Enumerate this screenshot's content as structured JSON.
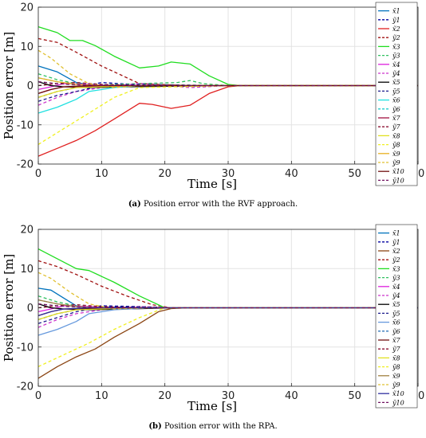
{
  "chart_data": [
    {
      "type": "line",
      "caption_tag": "(a)",
      "caption_text": " Position error with the RVF approach.",
      "xlabel": "Time [s]",
      "ylabel": "Position error [m]",
      "xlim": [
        0,
        60
      ],
      "ylim": [
        -20,
        20
      ],
      "xticks": [
        0,
        10,
        20,
        30,
        40,
        50,
        60
      ],
      "yticks": [
        -20,
        -10,
        0,
        10,
        20
      ],
      "grid": true,
      "legend": "right",
      "series": [
        {
          "name": "x̃1",
          "color": "#0072BD",
          "dash": false,
          "x": [
            0,
            3,
            6,
            10,
            16,
            30,
            60
          ],
          "y": [
            5,
            3.5,
            0.8,
            -0.3,
            0,
            0,
            0
          ]
        },
        {
          "name": "ỹ1",
          "color": "#0000A0",
          "dash": true,
          "x": [
            0,
            3,
            6,
            10,
            16,
            30,
            60
          ],
          "y": [
            -3,
            -1.5,
            -0.5,
            0.8,
            0.2,
            0,
            0
          ]
        },
        {
          "name": "x̃2",
          "color": "#E02020",
          "dash": false,
          "x": [
            0,
            3,
            6,
            9,
            12,
            16,
            18,
            21,
            24,
            27,
            30,
            32,
            60
          ],
          "y": [
            -18,
            -16,
            -14,
            -11.5,
            -8.5,
            -4.5,
            -4.8,
            -5.8,
            -5,
            -2,
            -0.3,
            0,
            0
          ]
        },
        {
          "name": "ỹ2",
          "color": "#A01010",
          "dash": true,
          "x": [
            0,
            3,
            6,
            10,
            16,
            24,
            30,
            60
          ],
          "y": [
            12,
            11,
            8.5,
            5,
            0.5,
            0,
            0,
            0
          ]
        },
        {
          "name": "x̃3",
          "color": "#20DD20",
          "dash": false,
          "x": [
            0,
            3,
            5,
            7,
            9,
            12,
            16,
            19,
            21,
            24,
            27,
            30,
            32,
            60
          ],
          "y": [
            15,
            13.5,
            11.5,
            11.5,
            10.2,
            7.5,
            4.5,
            5,
            6,
            5.5,
            2.5,
            0.3,
            0,
            0
          ]
        },
        {
          "name": "ỹ3",
          "color": "#30C060",
          "dash": true,
          "x": [
            0,
            3,
            6,
            10,
            16,
            22,
            24,
            26,
            30,
            60
          ],
          "y": [
            3,
            1.5,
            0.5,
            0.2,
            0.5,
            0.8,
            1.3,
            0.5,
            0,
            0
          ]
        },
        {
          "name": "x̃4",
          "color": "#DD20DD",
          "dash": false,
          "x": [
            0,
            2,
            4,
            8,
            14,
            30,
            60
          ],
          "y": [
            -1,
            -0.3,
            0.5,
            0.3,
            -0.2,
            0,
            0
          ]
        },
        {
          "name": "ỹ4",
          "color": "#CC33CC",
          "dash": true,
          "x": [
            0,
            3,
            6,
            12,
            16,
            24,
            30,
            60
          ],
          "y": [
            -5,
            -3,
            -1.5,
            0,
            0.5,
            -0.5,
            0,
            0
          ]
        },
        {
          "name": "x̃5",
          "color": "#000000",
          "dash": false,
          "x": [
            0,
            2,
            4,
            8,
            14,
            30,
            60
          ],
          "y": [
            1,
            0,
            -0.3,
            -0.5,
            -0.3,
            0,
            0
          ]
        },
        {
          "name": "ỹ5",
          "color": "#1A1A8C",
          "dash": true,
          "x": [
            0,
            3,
            6,
            10,
            16,
            30,
            60
          ],
          "y": [
            -4,
            -2.5,
            -1.5,
            0,
            0.3,
            0,
            0
          ]
        },
        {
          "name": "x̃6",
          "color": "#20E0E0",
          "dash": false,
          "x": [
            0,
            3,
            6,
            8,
            12,
            16,
            30,
            60
          ],
          "y": [
            -7,
            -5.5,
            -3.5,
            -1.5,
            -0.5,
            0,
            0,
            0
          ]
        },
        {
          "name": "ỹ6",
          "color": "#20CCCC",
          "dash": true,
          "x": [
            0,
            3,
            6,
            12,
            16,
            30,
            60
          ],
          "y": [
            2,
            1,
            0.3,
            -0.3,
            0,
            0,
            0
          ]
        },
        {
          "name": "x̃7",
          "color": "#A01040",
          "dash": false,
          "x": [
            0,
            2,
            4,
            8,
            14,
            30,
            60
          ],
          "y": [
            -2,
            -1,
            -0.3,
            -0.2,
            0,
            0,
            0
          ]
        },
        {
          "name": "ỹ7",
          "color": "#8C1030",
          "dash": true,
          "x": [
            0,
            3,
            6,
            10,
            16,
            30,
            60
          ],
          "y": [
            0,
            0.5,
            0.8,
            0.3,
            0,
            0,
            0
          ]
        },
        {
          "name": "x̃8",
          "color": "#E0E020",
          "dash": false,
          "x": [
            0,
            3,
            6,
            12,
            16,
            30,
            60
          ],
          "y": [
            -3,
            -1.5,
            -0.5,
            -0.2,
            0,
            0,
            0
          ]
        },
        {
          "name": "ỹ8",
          "color": "#F0F020",
          "dash": true,
          "x": [
            0,
            4,
            8,
            12,
            16,
            30,
            60
          ],
          "y": [
            -15,
            -11,
            -7,
            -3,
            -0.5,
            0,
            0
          ]
        },
        {
          "name": "x̃9",
          "color": "#E8B020",
          "dash": false,
          "x": [
            0,
            3,
            6,
            12,
            16,
            30,
            60
          ],
          "y": [
            2,
            1,
            0.3,
            -0.2,
            0,
            0,
            0
          ]
        },
        {
          "name": "ỹ9",
          "color": "#E0C030",
          "dash": true,
          "x": [
            0,
            2,
            5,
            8,
            12,
            16,
            30,
            60
          ],
          "y": [
            9,
            7,
            3,
            0.5,
            -0.5,
            0,
            0,
            0
          ]
        },
        {
          "name": "x̃10",
          "color": "#701010",
          "dash": false,
          "x": [
            0,
            2,
            4,
            8,
            14,
            30,
            60
          ],
          "y": [
            -2,
            -1,
            -0.3,
            0,
            0,
            0,
            0
          ]
        },
        {
          "name": "ỹ10",
          "color": "#701060",
          "dash": true,
          "x": [
            0,
            3,
            6,
            12,
            16,
            30,
            60
          ],
          "y": [
            1,
            0.5,
            0.2,
            0,
            0,
            0,
            0
          ]
        }
      ]
    },
    {
      "type": "line",
      "caption_tag": "(b)",
      "caption_text": " Position error with the RPA.",
      "xlabel": "Time [s]",
      "ylabel": "Position error [m]",
      "xlim": [
        0,
        60
      ],
      "ylim": [
        -20,
        20
      ],
      "xticks": [
        0,
        10,
        20,
        30,
        40,
        50,
        60
      ],
      "yticks": [
        -20,
        -10,
        0,
        10,
        20
      ],
      "grid": true,
      "legend": "right",
      "series": [
        {
          "name": "x̃1",
          "color": "#0072BD",
          "dash": false,
          "x": [
            0,
            2,
            4,
            6,
            8,
            12,
            20,
            60
          ],
          "y": [
            5,
            4.5,
            2.5,
            0.5,
            -0.3,
            -0.2,
            0,
            0
          ]
        },
        {
          "name": "ỹ1",
          "color": "#0000A0",
          "dash": true,
          "x": [
            0,
            3,
            6,
            10,
            16,
            22,
            60
          ],
          "y": [
            -3,
            -1.5,
            -0.5,
            0.5,
            0.3,
            0,
            0
          ]
        },
        {
          "name": "x̃2",
          "color": "#8B4513",
          "dash": false,
          "x": [
            0,
            3,
            6,
            9,
            12,
            16,
            19,
            21,
            24,
            60
          ],
          "y": [
            -18,
            -15,
            -12.5,
            -10.5,
            -7.5,
            -4,
            -1,
            -0.2,
            0,
            0
          ]
        },
        {
          "name": "ỹ2",
          "color": "#A01010",
          "dash": true,
          "x": [
            0,
            3,
            6,
            10,
            14,
            18,
            21,
            60
          ],
          "y": [
            12,
            10.5,
            8.5,
            5.5,
            3,
            0.8,
            0,
            0
          ]
        },
        {
          "name": "x̃3",
          "color": "#20DD20",
          "dash": false,
          "x": [
            0,
            3,
            6,
            8,
            12,
            16,
            20,
            60
          ],
          "y": [
            15,
            12.5,
            10,
            9.5,
            6.5,
            3,
            0,
            0
          ]
        },
        {
          "name": "ỹ3",
          "color": "#30C060",
          "dash": true,
          "x": [
            0,
            3,
            6,
            10,
            16,
            22,
            60
          ],
          "y": [
            3,
            1.5,
            0.5,
            0.2,
            0,
            0,
            0
          ]
        },
        {
          "name": "x̃4",
          "color": "#DD20DD",
          "dash": false,
          "x": [
            0,
            2,
            4,
            8,
            14,
            22,
            60
          ],
          "y": [
            -1,
            -0.3,
            0.5,
            0.3,
            -0.2,
            0,
            0
          ]
        },
        {
          "name": "ỹ4",
          "color": "#CC33CC",
          "dash": true,
          "x": [
            0,
            3,
            6,
            12,
            16,
            22,
            60
          ],
          "y": [
            -5,
            -3,
            -1.5,
            0,
            0.3,
            0,
            0
          ]
        },
        {
          "name": "x̃5",
          "color": "#000000",
          "dash": false,
          "x": [
            0,
            2,
            4,
            8,
            14,
            22,
            60
          ],
          "y": [
            1,
            0,
            -0.3,
            -0.5,
            -0.3,
            0,
            0
          ]
        },
        {
          "name": "ỹ5",
          "color": "#1A1A8C",
          "dash": true,
          "x": [
            0,
            3,
            6,
            10,
            16,
            22,
            60
          ],
          "y": [
            -4,
            -2.5,
            -1,
            0.2,
            0.2,
            0,
            0
          ]
        },
        {
          "name": "x̃6",
          "color": "#6699DD",
          "dash": false,
          "x": [
            0,
            3,
            6,
            8,
            12,
            18,
            22,
            60
          ],
          "y": [
            -7,
            -5.5,
            -3.5,
            -1.5,
            -0.5,
            0,
            0,
            0
          ]
        },
        {
          "name": "ỹ6",
          "color": "#3377BB",
          "dash": true,
          "x": [
            0,
            3,
            6,
            12,
            16,
            22,
            60
          ],
          "y": [
            2,
            1,
            0.3,
            -0.3,
            0,
            0,
            0
          ]
        },
        {
          "name": "x̃7",
          "color": "#701010",
          "dash": false,
          "x": [
            0,
            2,
            4,
            8,
            14,
            22,
            60
          ],
          "y": [
            -2,
            -1,
            -0.3,
            -0.2,
            0,
            0,
            0
          ]
        },
        {
          "name": "ỹ7",
          "color": "#8C1030",
          "dash": true,
          "x": [
            0,
            3,
            6,
            10,
            16,
            22,
            60
          ],
          "y": [
            0,
            0.5,
            0.8,
            0.3,
            0,
            0,
            0
          ]
        },
        {
          "name": "x̃8",
          "color": "#E0E020",
          "dash": false,
          "x": [
            0,
            3,
            6,
            12,
            16,
            22,
            60
          ],
          "y": [
            -3,
            -1.5,
            -0.5,
            -0.2,
            0,
            0,
            0
          ]
        },
        {
          "name": "ỹ8",
          "color": "#F0F020",
          "dash": true,
          "x": [
            0,
            4,
            8,
            12,
            16,
            20,
            60
          ],
          "y": [
            -15,
            -12,
            -9,
            -5.5,
            -2.5,
            0,
            0
          ]
        },
        {
          "name": "x̃9",
          "color": "#A08040",
          "dash": false,
          "x": [
            0,
            3,
            6,
            12,
            16,
            22,
            60
          ],
          "y": [
            2,
            1,
            0.3,
            -0.2,
            0,
            0,
            0
          ]
        },
        {
          "name": "ỹ9",
          "color": "#E0C030",
          "dash": true,
          "x": [
            0,
            2,
            5,
            8,
            12,
            18,
            60
          ],
          "y": [
            9,
            7.5,
            4,
            1,
            -0.3,
            0,
            0
          ]
        },
        {
          "name": "x̃10",
          "color": "#3030A0",
          "dash": false,
          "x": [
            0,
            2,
            4,
            8,
            14,
            22,
            60
          ],
          "y": [
            -2,
            -1,
            -0.3,
            0,
            0,
            0,
            0
          ]
        },
        {
          "name": "ỹ10",
          "color": "#701060",
          "dash": true,
          "x": [
            0,
            3,
            6,
            12,
            16,
            22,
            60
          ],
          "y": [
            1,
            0.5,
            0.2,
            0,
            0,
            0,
            0
          ]
        }
      ]
    }
  ]
}
